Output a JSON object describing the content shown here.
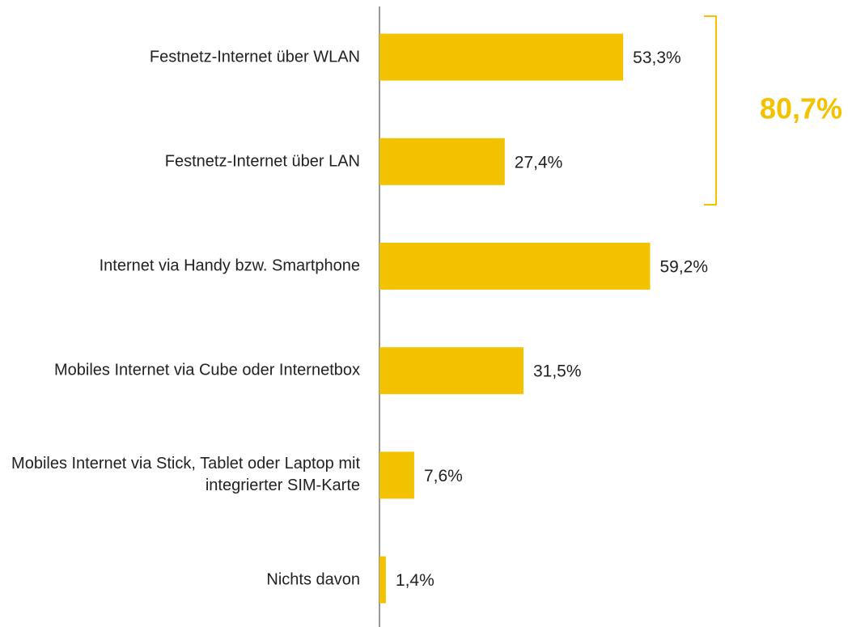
{
  "chart_data": {
    "type": "bar",
    "orientation": "horizontal",
    "categories": [
      "Festnetz-Internet über WLAN",
      "Festnetz-Internet über LAN",
      "Internet via Handy bzw. Smartphone",
      "Mobiles Internet via Cube oder Internetbox",
      "Mobiles Internet via Stick, Tablet oder Laptop mit integrierter SIM-Karte",
      "Nichts davon"
    ],
    "values": [
      53.3,
      27.4,
      59.2,
      31.5,
      7.6,
      1.4
    ],
    "value_labels": [
      "53,3%",
      "27,4%",
      "59,2%",
      "31,5%",
      "7,6%",
      "1,4%"
    ],
    "color": "#f2c200",
    "xlim": [
      0,
      100
    ],
    "annotation": "80,7%"
  }
}
